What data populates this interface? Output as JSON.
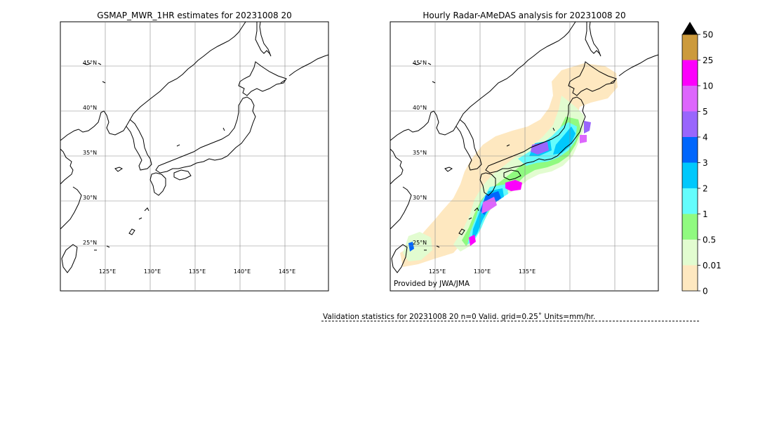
{
  "chart_data": [
    {
      "type": "heatmap",
      "title": "GSMAP_MWR_1HR estimates for 20231008 20",
      "lon_range": [
        120,
        150
      ],
      "lat_range": [
        20,
        50
      ],
      "lat_ticks": [
        "45°N",
        "40°N",
        "35°N",
        "30°N",
        "25°N"
      ],
      "lon_ticks": [
        "125°E",
        "130°E",
        "135°E",
        "140°E",
        "145°E"
      ],
      "grid": true,
      "precipitation_shown": false
    },
    {
      "type": "heatmap",
      "title": "Hourly Radar-AMeDAS analysis for 20231008 20",
      "lon_range": [
        120,
        150
      ],
      "lat_range": [
        20,
        50
      ],
      "lat_ticks": [
        "45°N",
        "40°N",
        "35°N",
        "30°N",
        "25°N"
      ],
      "lon_ticks": [
        "125°E",
        "130°E",
        "135°E"
      ],
      "grid": true,
      "credit": "Provided by JWA/JMA"
    }
  ],
  "colorbar": {
    "units": "mm/hr",
    "extend": "max",
    "labels": [
      "0",
      "0.01",
      "0.5",
      "1",
      "2",
      "3",
      "4",
      "5",
      "10",
      "25",
      "50"
    ],
    "colors": [
      "#fee8c0",
      "#e2fcd0",
      "#90fa80",
      "#64fcfc",
      "#00c8fc",
      "#0066fc",
      "#9966fc",
      "#dd66fc",
      "#fc00fc",
      "#cc9a3c"
    ],
    "extend_color": "#000000"
  },
  "validation": {
    "text": "Validation statistics for 20231008 20  n=0 Valid. grid=0.25˚ Units=mm/hr."
  }
}
